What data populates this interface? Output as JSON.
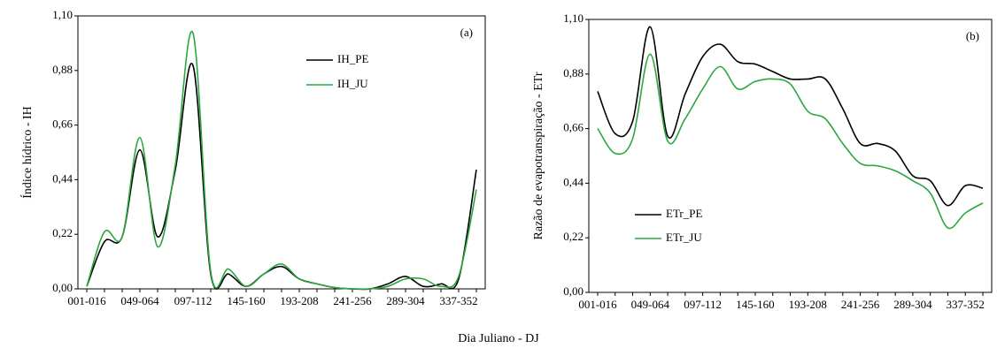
{
  "chart_data": [
    {
      "type": "line",
      "panel_label": "(a)",
      "y_label": "Índice hídrico - IH",
      "x_label": "Dia Juliano - DJ",
      "categories": [
        "001-016",
        null,
        null,
        "049-064",
        null,
        null,
        "097-112",
        null,
        null,
        "145-160",
        null,
        null,
        "193-208",
        null,
        null,
        "241-256",
        null,
        null,
        "289-304",
        null,
        null,
        "337-352",
        null
      ],
      "series": [
        {
          "name": "IH_PE",
          "color": "#000000",
          "values": [
            0.01,
            0.19,
            0.21,
            0.56,
            0.21,
            0.48,
            0.9,
            0.06,
            0.06,
            0.01,
            0.06,
            0.09,
            0.04,
            0.02,
            0.005,
            0.0,
            0.0,
            0.02,
            0.05,
            0.01,
            0.02,
            0.04,
            0.48
          ]
        },
        {
          "name": "IH_JU",
          "color": "#2ca640",
          "values": [
            0.01,
            0.23,
            0.21,
            0.61,
            0.17,
            0.5,
            1.03,
            0.07,
            0.08,
            0.01,
            0.06,
            0.1,
            0.04,
            0.02,
            0.005,
            0.0,
            0.0,
            0.01,
            0.04,
            0.04,
            0.01,
            0.05,
            0.4
          ]
        }
      ],
      "ylim": [
        0,
        1.1
      ],
      "yticks": [
        {
          "value": 0,
          "label": "0,00"
        },
        {
          "value": 0.22,
          "label": "0,22"
        },
        {
          "value": 0.44,
          "label": "0,44"
        },
        {
          "value": 0.66,
          "label": "0,66"
        },
        {
          "value": 0.88,
          "label": "0,88"
        },
        {
          "value": 1.1,
          "label": "1,10"
        }
      ],
      "legend": "upper-center"
    },
    {
      "type": "line",
      "panel_label": "(b)",
      "y_label": "Razão de evapotranspiração - ETr",
      "categories": [
        "001-016",
        null,
        null,
        "049-064",
        null,
        null,
        "097-112",
        null,
        null,
        "145-160",
        null,
        null,
        "193-208",
        null,
        null,
        "241-256",
        null,
        null,
        "289-304",
        null,
        null,
        "337-352",
        null
      ],
      "series": [
        {
          "name": "ETr_PE",
          "color": "#000000",
          "values": [
            0.81,
            0.64,
            0.69,
            1.07,
            0.63,
            0.8,
            0.95,
            1.0,
            0.93,
            0.92,
            0.89,
            0.86,
            0.86,
            0.86,
            0.74,
            0.6,
            0.6,
            0.57,
            0.47,
            0.45,
            0.35,
            0.43,
            0.42
          ]
        },
        {
          "name": "ETr_JU",
          "color": "#2ca640",
          "values": [
            0.66,
            0.56,
            0.62,
            0.96,
            0.61,
            0.7,
            0.82,
            0.91,
            0.82,
            0.85,
            0.86,
            0.84,
            0.73,
            0.7,
            0.6,
            0.52,
            0.51,
            0.49,
            0.45,
            0.4,
            0.26,
            0.32,
            0.36
          ]
        }
      ],
      "ylim": [
        0,
        1.1
      ],
      "yticks": [
        {
          "value": 0,
          "label": "0,00"
        },
        {
          "value": 0.22,
          "label": "0,22"
        },
        {
          "value": 0.44,
          "label": "0,44"
        },
        {
          "value": 0.66,
          "label": "0,66"
        },
        {
          "value": 0.88,
          "label": "0,88"
        },
        {
          "value": 1.1,
          "label": "1,10"
        }
      ],
      "legend": "lower-left"
    }
  ]
}
